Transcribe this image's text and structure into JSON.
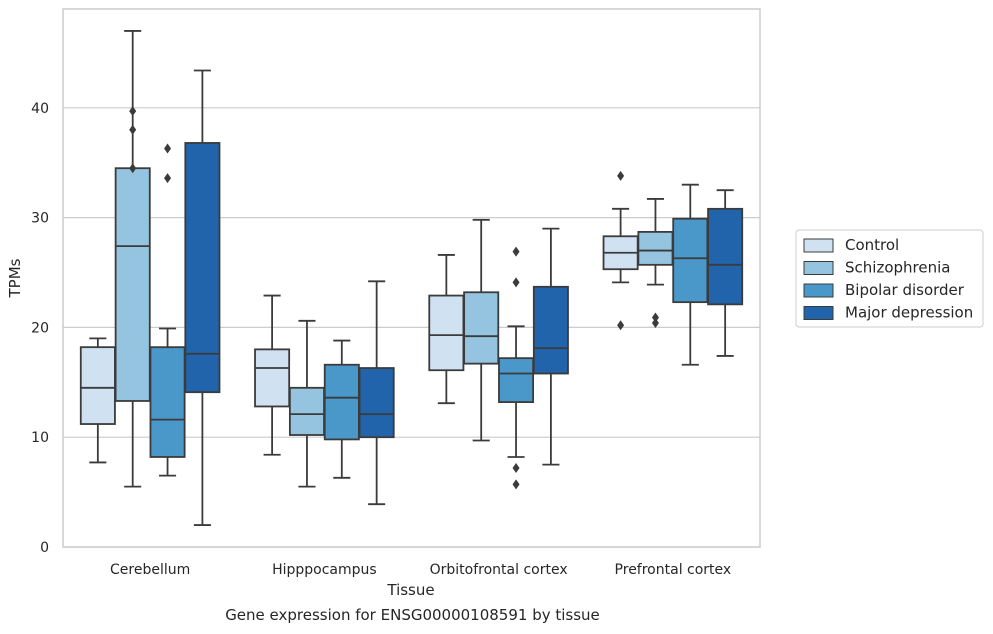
{
  "caption": "Gene expression for ENSG00000108591 by tissue",
  "chart_data": {
    "type": "box",
    "xlabel": "Tissue",
    "ylabel": "TPMs",
    "ylim": [
      0,
      49
    ],
    "yticks": [
      0,
      10,
      20,
      30,
      40
    ],
    "grid": "horizontal",
    "legend_position": "right",
    "categories": [
      "Cerebellum",
      "Hipppocampus",
      "Orbitofrontal cortex",
      "Prefrontal cortex"
    ],
    "series": [
      {
        "name": "Control",
        "color": "#d0e1f2",
        "boxes": [
          {
            "whislo": 7.7,
            "q1": 11.2,
            "med": 14.5,
            "q3": 18.2,
            "whishi": 19.0,
            "fliers": []
          },
          {
            "whislo": 8.4,
            "q1": 12.8,
            "med": 16.3,
            "q3": 18.0,
            "whishi": 22.9,
            "fliers": []
          },
          {
            "whislo": 13.1,
            "q1": 16.1,
            "med": 19.3,
            "q3": 22.9,
            "whishi": 26.6,
            "fliers": []
          },
          {
            "whislo": 24.1,
            "q1": 25.3,
            "med": 26.8,
            "q3": 28.3,
            "whishi": 30.8,
            "fliers": [
              20.2,
              33.8
            ]
          }
        ]
      },
      {
        "name": "Schizophrenia",
        "color": "#94c4df",
        "boxes": [
          {
            "whislo": 5.5,
            "q1": 13.3,
            "med": 27.4,
            "q3": 34.5,
            "whishi": 47.0,
            "fliers": [
              34.5,
              38.0,
              39.7
            ]
          },
          {
            "whislo": 5.5,
            "q1": 10.2,
            "med": 12.1,
            "q3": 14.5,
            "whishi": 20.6,
            "fliers": []
          },
          {
            "whislo": 9.7,
            "q1": 16.7,
            "med": 19.2,
            "q3": 23.2,
            "whishi": 29.8,
            "fliers": []
          },
          {
            "whislo": 23.9,
            "q1": 25.7,
            "med": 27.0,
            "q3": 28.7,
            "whishi": 31.7,
            "fliers": [
              20.4,
              20.9
            ]
          }
        ]
      },
      {
        "name": "Bipolar disorder",
        "color": "#4a98c9",
        "boxes": [
          {
            "whislo": 6.5,
            "q1": 8.2,
            "med": 11.6,
            "q3": 18.2,
            "whishi": 19.9,
            "fliers": [
              33.6,
              36.3
            ]
          },
          {
            "whislo": 6.3,
            "q1": 9.8,
            "med": 13.6,
            "q3": 16.6,
            "whishi": 18.8,
            "fliers": []
          },
          {
            "whislo": 8.2,
            "q1": 13.2,
            "med": 15.8,
            "q3": 17.2,
            "whishi": 20.1,
            "fliers": [
              5.7,
              7.2,
              24.1,
              26.9
            ]
          },
          {
            "whislo": 16.6,
            "q1": 22.3,
            "med": 26.3,
            "q3": 29.9,
            "whishi": 33.0,
            "fliers": []
          }
        ]
      },
      {
        "name": "Major depression",
        "color": "#2164ab",
        "boxes": [
          {
            "whislo": 2.0,
            "q1": 14.1,
            "med": 17.6,
            "q3": 36.8,
            "whishi": 43.4,
            "fliers": []
          },
          {
            "whislo": 3.9,
            "q1": 10.0,
            "med": 12.1,
            "q3": 16.3,
            "whishi": 24.2,
            "fliers": []
          },
          {
            "whislo": 7.5,
            "q1": 15.8,
            "med": 18.1,
            "q3": 23.7,
            "whishi": 29.0,
            "fliers": []
          },
          {
            "whislo": 17.4,
            "q1": 22.1,
            "med": 25.7,
            "q3": 30.8,
            "whishi": 32.5,
            "fliers": []
          }
        ]
      }
    ]
  }
}
